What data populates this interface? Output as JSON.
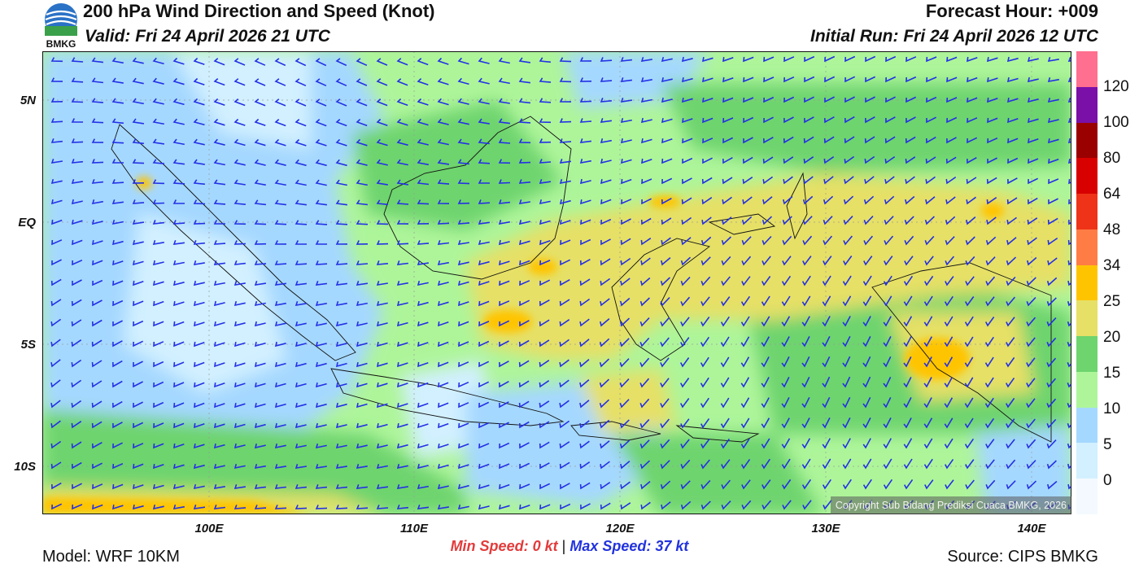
{
  "header": {
    "title": "200 hPa Wind Direction and Speed (Knot)",
    "valid": "Valid: Fri 24 April 2026 21 UTC",
    "forecast_hour": "Forecast Hour: +009",
    "initial_run": "Initial Run: Fri 24 April 2026 12 UTC",
    "logo_text": "BMKG"
  },
  "map": {
    "lat_labels": [
      "5N",
      "EQ",
      "5S",
      "10S"
    ],
    "lon_labels": [
      "100E",
      "110E",
      "120E",
      "130E",
      "140E"
    ],
    "copyright": "Copyright Sub Bidang Prediksi Cuaca BMKG, 2026"
  },
  "colorbar": {
    "labels": [
      "120",
      "100",
      "80",
      "64",
      "48",
      "34",
      "25",
      "20",
      "15",
      "10",
      "5",
      "0"
    ],
    "colors": [
      "#ff6f8f",
      "#7a10a8",
      "#9b0000",
      "#d80000",
      "#ee3318",
      "#ff7d45",
      "#ffc400",
      "#e6e066",
      "#6ed46e",
      "#aef59a",
      "#a5d8ff",
      "#d2f0ff",
      "#f3f9ff"
    ]
  },
  "footer": {
    "min_speed_label": "Min Speed:",
    "min_speed_value": "0 kt",
    "separator": "|",
    "max_speed_label": "Max Speed:",
    "max_speed_value": "37 kt",
    "model": "Model: WRF 10KM",
    "source": "Source: CIPS BMKG"
  }
}
